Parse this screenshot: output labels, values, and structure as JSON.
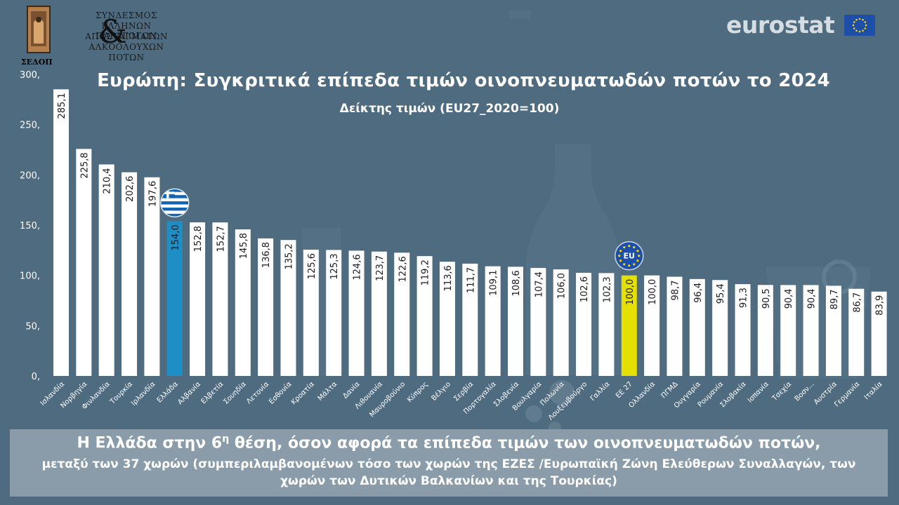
{
  "logo": {
    "lines": [
      "ΣΥΝΔΕΣΜΟΣ",
      "ΕΛΛΗΝΩΝ ΠΑΡΑΓΩΓΩΝ",
      "ΑΠΟΣΤΑΓΜΑΤΩΝ",
      "ΑΛΚΟΟΛΟΥΧΩΝ",
      "ΠΟΤΩΝ"
    ],
    "ampersand": "&",
    "short": "ΣΕΔΟΠ"
  },
  "brand": {
    "name": "eurostat"
  },
  "colors": {
    "background": "#4f6b80",
    "bar": "#ffffff",
    "greece": "#1f8ec5",
    "eu": "#e6e000",
    "footer": "#8a9ca9"
  },
  "footer": {
    "line1": "Η Ελλάδα στην 6η θέση, όσον αφορά τα επίπεδα τιμών των οινοπνευματωδών ποτών,",
    "line2": "μεταξύ των 37 χωρών (συμπεριλαμβανομένων τόσο των χωρών της ΕΖΕΣ /Ευρωπαϊκή Ζώνη Ελεύθερων Συναλλαγών, των χωρών των Δυτικών Βαλκανίων και της Τουρκίας)"
  },
  "chart_data": {
    "type": "bar",
    "title": "Ευρώπη: Συγκριτικά επίπεδα τιμών οινοπνευματωδών ποτών το 2024",
    "subtitle": "Δείκτης τιμών (EU27_2020=100)",
    "xlabel": "",
    "ylabel": "",
    "ylim": [
      0,
      300
    ],
    "yticks": [
      "0,",
      "50,",
      "100,",
      "150,",
      "200,",
      "250,",
      "300,"
    ],
    "grid": false,
    "legend": "none",
    "eu_badge": "EU",
    "categories": [
      "Ισλανδία",
      "Νορβηγία",
      "Φινλανδία",
      "Τουρκία",
      "Ιρλανδία",
      "Ελλάδα",
      "Αλβανία",
      "Ελβετία",
      "Σουηδία",
      "Λετονία",
      "Εσθονία",
      "Κροατία",
      "Μάλτα",
      "Δανία",
      "Λιθουανία",
      "Μαυροβούνιο",
      "Κύπρος",
      "Βέλγιο",
      "Σερβία",
      "Πορτογαλία",
      "Σλοβενία",
      "Βουλγαρία",
      "Πολωνία",
      "Λουξεμβούργο",
      "Γαλλία",
      "ΕΕ 27",
      "Ολλανδία",
      "ΠΓΜΔ",
      "Ουγγαρία",
      "Ρουμανία",
      "Σλοβακία",
      "Ισπανία",
      "Τσεχία",
      "Βοσν...",
      "Αυστρία",
      "Γερμανία",
      "Ιταλία"
    ],
    "values": [
      285.1,
      225.8,
      210.4,
      202.6,
      197.6,
      154.0,
      152.8,
      152.7,
      145.8,
      136.8,
      135.2,
      125.6,
      125.3,
      124.6,
      123.7,
      122.6,
      119.2,
      113.6,
      111.7,
      109.1,
      108.6,
      107.4,
      106.0,
      102.6,
      102.3,
      100.0,
      100.0,
      98.7,
      96.4,
      95.4,
      91.3,
      90.5,
      90.4,
      90.4,
      89.7,
      86.7,
      83.9
    ],
    "value_labels": [
      "285,1",
      "225,8",
      "210,4",
      "202,6",
      "197,6",
      "154,0",
      "152,8",
      "152,7",
      "145,8",
      "136,8",
      "135,2",
      "125,6",
      "125,3",
      "124,6",
      "123,7",
      "122,6",
      "119,2",
      "113,6",
      "111,7",
      "109,1",
      "108,6",
      "107,4",
      "106,0",
      "102,6",
      "102,3",
      "100,0",
      "100,0",
      "98,7",
      "96,4",
      "95,4",
      "91,3",
      "90,5",
      "90,4",
      "90,4",
      "89,7",
      "86,7",
      "83,9"
    ],
    "highlight": {
      "Ελλάδα": "greece",
      "ΕΕ 27": "eu"
    }
  }
}
